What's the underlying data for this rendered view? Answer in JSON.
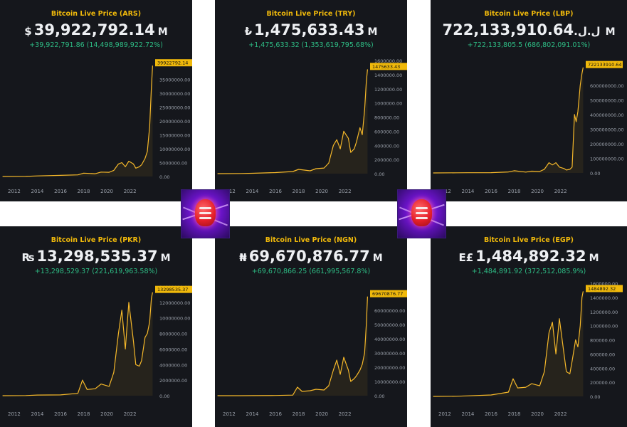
{
  "colors": {
    "line": "#f5b82a",
    "change": "#2ebd85",
    "panel": "#15171c",
    "grid_text": "#9aa0aa",
    "tag": "#f0b90b"
  },
  "logo": {
    "icon": "fist-lightning-logo"
  },
  "chart_data": [
    {
      "type": "line",
      "title": "Bitcoin Live Price (ARS)",
      "symbol": "$",
      "price": "39,922,792.14",
      "unit": "M",
      "change": "+39,922,791.86 (14,498,989,922.72%)",
      "current_tag": "39922792.14",
      "x_ticks": [
        "2012",
        "2014",
        "2016",
        "2018",
        "2020",
        "2022"
      ],
      "y_ticks": [
        "35000000.00",
        "30000000.00",
        "25000000.00",
        "20000000.00",
        "15000000.00",
        "10000000.00",
        "5000000.00",
        "0.00"
      ],
      "ylim": [
        0,
        41000000
      ],
      "xlim": [
        2010.9,
        2024.05
      ],
      "series": [
        {
          "x": [
            2011.0,
            2013.0,
            2014.0,
            2016.0,
            2017.5,
            2018.0,
            2019.0,
            2019.5,
            2020.2,
            2020.6,
            2021.0,
            2021.3,
            2021.6,
            2021.9,
            2022.3,
            2022.5,
            2022.8,
            2023.0,
            2023.3,
            2023.5,
            2023.7,
            2023.85,
            2023.95
          ],
          "y": [
            0,
            30000,
            200000,
            400000,
            600000,
            1200000,
            1000000,
            1600000,
            1500000,
            2200000,
            4500000,
            5000000,
            3500000,
            5500000,
            4500000,
            3000000,
            3500000,
            4200000,
            6500000,
            9000000,
            18000000,
            32000000,
            39922792
          ]
        }
      ]
    },
    {
      "type": "line",
      "title": "Bitcoin Live Price (TRY)",
      "symbol": "₺",
      "price": "1,475,633.43",
      "unit": "M",
      "change": "+1,475,633.32 (1,353,619,795.68%)",
      "current_tag": "1475633.43",
      "x_ticks": [
        "2012",
        "2014",
        "2016",
        "2018",
        "2020",
        "2022"
      ],
      "y_ticks": [
        "1600000.00",
        "1400000.00",
        "1200000.00",
        "1000000.00",
        "800000.00",
        "600000.00",
        "400000.00",
        "200000.00",
        "0.00"
      ],
      "ylim": [
        0,
        1600000
      ],
      "xlim": [
        2010.9,
        2024.05
      ],
      "series": [
        {
          "x": [
            2011.0,
            2013.0,
            2014.0,
            2016.0,
            2017.5,
            2018.0,
            2019.0,
            2019.5,
            2020.2,
            2020.6,
            2021.0,
            2021.3,
            2021.6,
            2021.9,
            2022.3,
            2022.5,
            2022.8,
            2023.0,
            2023.3,
            2023.5,
            2023.7,
            2023.85,
            2023.95
          ],
          "y": [
            0,
            2000,
            5000,
            15000,
            30000,
            60000,
            40000,
            70000,
            80000,
            150000,
            400000,
            480000,
            350000,
            600000,
            500000,
            300000,
            350000,
            450000,
            650000,
            550000,
            900000,
            1300000,
            1475633
          ]
        }
      ]
    },
    {
      "type": "line",
      "title": "Bitcoin Live Price (LBP)",
      "symbol": "ل.ل.",
      "price": "722,133,910.64",
      "unit": "M",
      "change": "+722,133,805.5 (686,802,091.01%)",
      "current_tag": "722133910.64",
      "x_ticks": [
        "2012",
        "2014",
        "2016",
        "2018",
        "2020",
        "2022"
      ],
      "y_ticks": [
        "600000000.00",
        "500000000.00",
        "400000000.00",
        "300000000.00",
        "200000000.00",
        "100000000.00",
        "0.00"
      ],
      "ylim": [
        0,
        740000000
      ],
      "xlim": [
        2010.9,
        2024.05
      ],
      "series": [
        {
          "x": [
            2011.0,
            2013.0,
            2014.0,
            2016.0,
            2017.5,
            2018.0,
            2019.0,
            2019.5,
            2020.2,
            2020.6,
            2021.0,
            2021.3,
            2021.6,
            2021.9,
            2022.3,
            2022.5,
            2022.8,
            2023.0,
            2023.2,
            2023.35,
            2023.5,
            2023.7,
            2023.85,
            2023.95
          ],
          "y": [
            0,
            1000000,
            1500000,
            2000000,
            7000000,
            15000000,
            6000000,
            12000000,
            10000000,
            25000000,
            70000000,
            55000000,
            70000000,
            40000000,
            30000000,
            20000000,
            25000000,
            40000000,
            400000000,
            350000000,
            420000000,
            600000000,
            680000000,
            722133910
          ]
        }
      ]
    },
    {
      "type": "line",
      "title": "Bitcoin Live Price (PKR)",
      "symbol": "₨",
      "price": "13,298,535.37",
      "unit": "M",
      "change": "+13,298,529.37 (221,619,963.58%)",
      "current_tag": "13298535.37",
      "x_ticks": [
        "2012",
        "2014",
        "2016",
        "2018",
        "2020",
        "2022"
      ],
      "y_ticks": [
        "14000000.00",
        "12000000.00",
        "10000000.00",
        "8000000.00",
        "6000000.00",
        "4000000.00",
        "2000000.00",
        "0.00"
      ],
      "ylim": [
        0,
        14000000
      ],
      "xlim": [
        2010.9,
        2024.05
      ],
      "series": [
        {
          "x": [
            2011.0,
            2013.0,
            2014.0,
            2016.0,
            2017.5,
            2017.9,
            2018.3,
            2019.0,
            2019.5,
            2020.2,
            2020.6,
            2021.0,
            2021.3,
            2021.6,
            2021.9,
            2022.3,
            2022.5,
            2022.8,
            2023.0,
            2023.3,
            2023.5,
            2023.7,
            2023.85,
            2023.95
          ],
          "y": [
            0,
            20000,
            80000,
            100000,
            300000,
            2000000,
            800000,
            900000,
            1500000,
            1200000,
            3000000,
            8000000,
            11000000,
            6000000,
            12000000,
            7000000,
            4000000,
            3800000,
            4500000,
            7500000,
            8000000,
            9500000,
            12500000,
            13298535
          ]
        }
      ]
    },
    {
      "type": "line",
      "title": "Bitcoin Live Price (NGN)",
      "symbol": "₦",
      "price": "69,670,876.77",
      "unit": "M",
      "change": "+69,670,866.25 (661,995,567.8%)",
      "current_tag": "69670876.77",
      "x_ticks": [
        "2012",
        "2014",
        "2016",
        "2018",
        "2020",
        "2022"
      ],
      "y_ticks": [
        "60000000.00",
        "50000000.00",
        "40000000.00",
        "30000000.00",
        "20000000.00",
        "10000000.00",
        "0.00"
      ],
      "ylim": [
        0,
        71500000
      ],
      "xlim": [
        2010.9,
        2024.05
      ],
      "series": [
        {
          "x": [
            2011.0,
            2013.0,
            2014.0,
            2016.0,
            2017.5,
            2017.9,
            2018.3,
            2019.0,
            2019.5,
            2020.2,
            2020.6,
            2021.0,
            2021.3,
            2021.6,
            2021.9,
            2022.3,
            2022.5,
            2022.8,
            2023.0,
            2023.3,
            2023.5,
            2023.7,
            2023.85,
            2023.95
          ],
          "y": [
            0,
            20000,
            60000,
            150000,
            400000,
            6000000,
            3000000,
            3500000,
            4500000,
            4000000,
            7000000,
            18000000,
            25000000,
            15000000,
            27000000,
            18000000,
            10000000,
            12000000,
            14000000,
            18000000,
            22000000,
            30000000,
            50000000,
            69670876
          ]
        }
      ]
    },
    {
      "type": "line",
      "title": "Bitcoin Live Price (EGP)",
      "symbol": "E£",
      "price": "1,484,892.32",
      "unit": "M",
      "change": "+1,484,891.92 (372,512,085.9%)",
      "current_tag": "1484892.32",
      "x_ticks": [
        "2012",
        "2014",
        "2016",
        "2018",
        "2020",
        "2022"
      ],
      "y_ticks": [
        "1600000.00",
        "1400000.00",
        "1200000.00",
        "1000000.00",
        "800000.00",
        "600000.00",
        "400000.00",
        "200000.00",
        "0.00"
      ],
      "ylim": [
        0,
        1600000
      ],
      "xlim": [
        2010.9,
        2024.05
      ],
      "series": [
        {
          "x": [
            2011.0,
            2013.0,
            2014.0,
            2016.0,
            2017.5,
            2017.9,
            2018.3,
            2019.0,
            2019.5,
            2020.2,
            2020.6,
            2021.0,
            2021.3,
            2021.6,
            2021.9,
            2022.3,
            2022.5,
            2022.8,
            2023.0,
            2023.3,
            2023.5,
            2023.7,
            2023.85,
            2023.95
          ],
          "y": [
            0,
            2000,
            8000,
            20000,
            60000,
            250000,
            120000,
            130000,
            180000,
            150000,
            350000,
            900000,
            1050000,
            600000,
            1100000,
            600000,
            350000,
            320000,
            500000,
            800000,
            700000,
            1000000,
            1400000,
            1484892
          ]
        }
      ]
    }
  ]
}
